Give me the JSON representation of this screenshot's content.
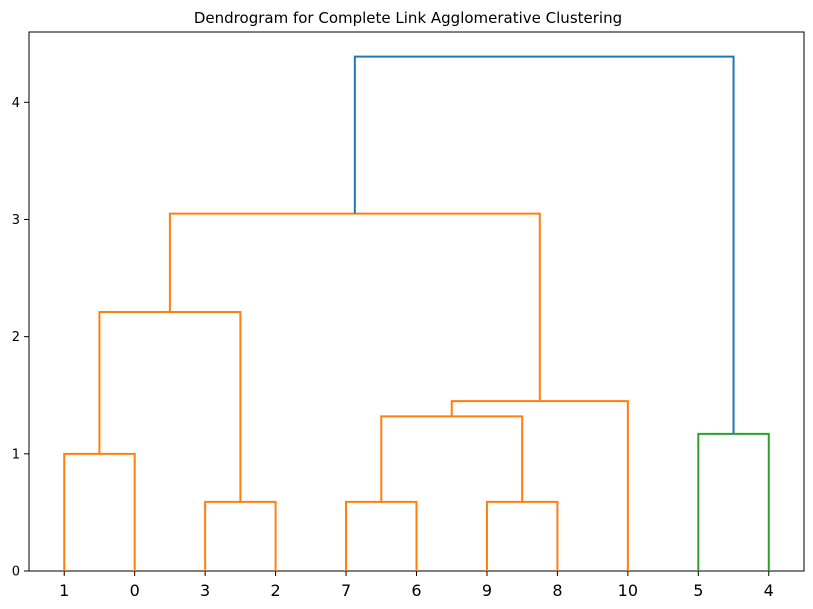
{
  "chart_data": {
    "type": "dendrogram",
    "title": "Dendrogram for Complete Link Agglomerative Clustering",
    "xlabel": "",
    "ylabel": "",
    "ylim": [
      0,
      4.6
    ],
    "yticks": [
      0,
      1,
      2,
      3,
      4
    ],
    "leaf_order": [
      "1",
      "0",
      "3",
      "2",
      "7",
      "6",
      "9",
      "8",
      "10",
      "5",
      "4"
    ],
    "colors": {
      "orange": "#ff7f0e",
      "green": "#2ca02c",
      "blue": "#1f77b4"
    },
    "merges": [
      {
        "left": "1",
        "right": "0",
        "height": 1.0,
        "color": "orange"
      },
      {
        "left": "3",
        "right": "2",
        "height": 0.59,
        "color": "orange"
      },
      {
        "left": "7",
        "right": "6",
        "height": 0.59,
        "color": "orange"
      },
      {
        "left": "9",
        "right": "8",
        "height": 0.59,
        "color": "orange"
      },
      {
        "left": "5",
        "right": "4",
        "height": 1.17,
        "color": "green"
      },
      {
        "left": "(7,6)",
        "right": "(9,8)",
        "height": 1.32,
        "color": "orange"
      },
      {
        "left": "((7,6),(9,8))",
        "right": "10",
        "height": 1.45,
        "color": "orange"
      },
      {
        "left": "(1,0)",
        "right": "(3,2)",
        "height": 2.21,
        "color": "orange"
      },
      {
        "left": "((1,0),(3,2))",
        "right": "(((7,6),(9,8)),10)",
        "height": 3.05,
        "color": "orange"
      },
      {
        "left": "orange-cluster",
        "right": "(5,4)",
        "height": 4.39,
        "color": "blue"
      }
    ]
  }
}
